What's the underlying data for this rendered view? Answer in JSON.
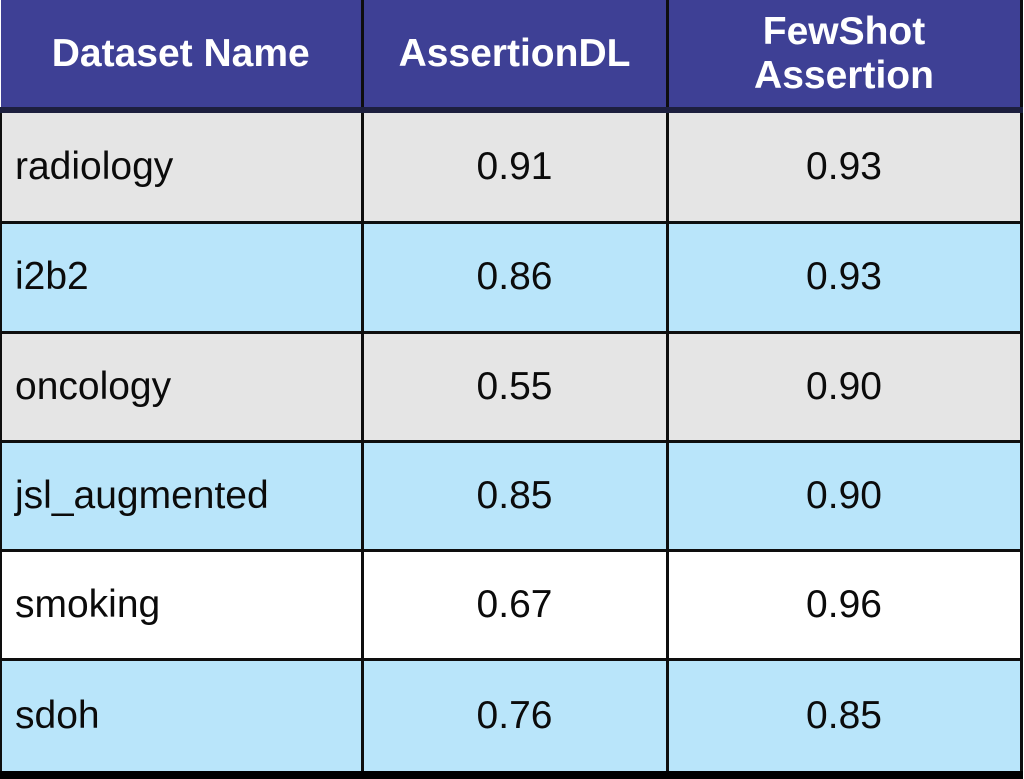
{
  "chart_data": {
    "type": "table",
    "title": "",
    "columns": [
      "Dataset Name",
      "AssertionDL",
      "FewShot Assertion"
    ],
    "categories": [
      "radiology",
      "i2b2",
      "oncology",
      "jsl_augmented",
      "smoking",
      "sdoh"
    ],
    "series": [
      {
        "name": "AssertionDL",
        "values": [
          0.91,
          0.86,
          0.55,
          0.85,
          0.67,
          0.76
        ]
      },
      {
        "name": "FewShot Assertion",
        "values": [
          0.93,
          0.93,
          0.9,
          0.9,
          0.96,
          0.85
        ]
      }
    ]
  },
  "table": {
    "headers": [
      "Dataset Name",
      "AssertionDL",
      "FewShot Assertion"
    ],
    "rows": [
      {
        "dataset": "radiology",
        "assertion_dl": "0.91",
        "fewshot": "0.93",
        "bg": "gray"
      },
      {
        "dataset": "i2b2",
        "assertion_dl": "0.86",
        "fewshot": "0.93",
        "bg": "blue"
      },
      {
        "dataset": "oncology",
        "assertion_dl": "0.55",
        "fewshot": "0.90",
        "bg": "gray"
      },
      {
        "dataset": "jsl_augmented",
        "assertion_dl": "0.85",
        "fewshot": "0.90",
        "bg": "blue"
      },
      {
        "dataset": "smoking",
        "assertion_dl": "0.67",
        "fewshot": "0.96",
        "bg": "white"
      },
      {
        "dataset": "sdoh",
        "assertion_dl": "0.76",
        "fewshot": "0.85",
        "bg": "blue"
      }
    ],
    "colors": {
      "header_bg": "#3E4095",
      "header_text": "#FFFFFF",
      "header_bottom_border": "#1D1F3E",
      "row_gray": "#E5E5E5",
      "row_blue": "#B9E5FA",
      "row_white": "#FFFFFF",
      "border": "#0E0E0E",
      "text": "#0B0B0B"
    }
  }
}
